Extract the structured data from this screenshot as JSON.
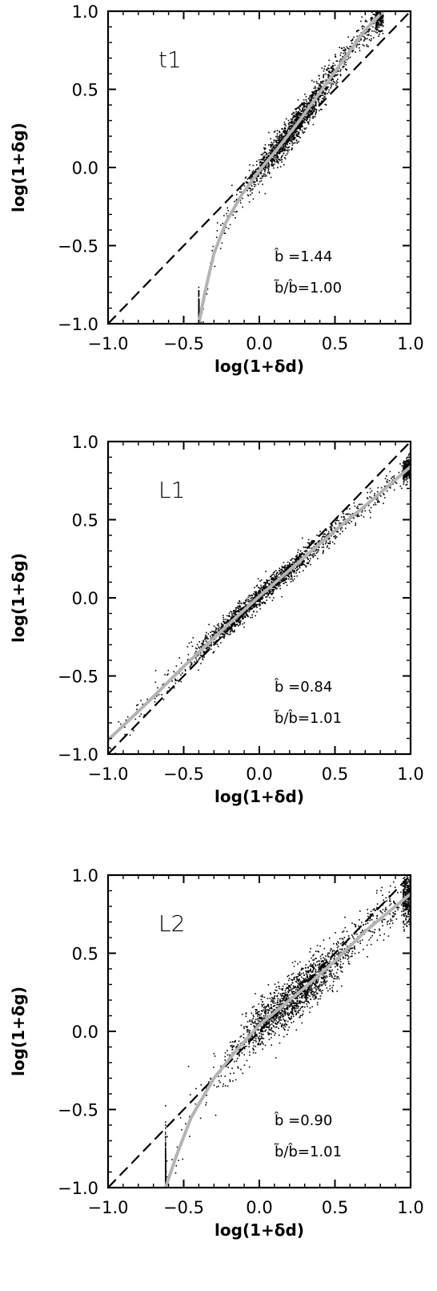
{
  "chart_data": [
    {
      "type": "scatter",
      "panel_label": "t1",
      "xlabel": "log(1+δd)",
      "ylabel": "log(1+δg)",
      "xlim": [
        -1.0,
        1.0
      ],
      "ylim": [
        -1.0,
        1.0
      ],
      "xticks": [
        "−1.0",
        "−0.5",
        "0.0",
        "0.5",
        "1.0"
      ],
      "yticks": [
        "−1.0",
        "−0.5",
        "0.0",
        "0.5",
        "1.0"
      ],
      "annotation_line1": "b̂   =1.44",
      "annotation_line2": "b̃/b̂=1.00",
      "b_hat": 1.44,
      "ratio": 1.0,
      "reference_line": {
        "style": "dashed",
        "points": [
          [
            -1.0,
            -1.0
          ],
          [
            1.0,
            1.0
          ]
        ]
      },
      "mean_relation": [
        [
          -0.4,
          -1.0
        ],
        [
          -0.36,
          -0.8
        ],
        [
          -0.3,
          -0.55
        ],
        [
          -0.22,
          -0.35
        ],
        [
          -0.12,
          -0.18
        ],
        [
          0.0,
          -0.02
        ],
        [
          0.12,
          0.12
        ],
        [
          0.25,
          0.28
        ],
        [
          0.4,
          0.48
        ],
        [
          0.55,
          0.68
        ],
        [
          0.7,
          0.88
        ],
        [
          0.82,
          1.0
        ]
      ],
      "scatter_spread": 0.05
    },
    {
      "type": "scatter",
      "panel_label": "L1",
      "xlabel": "log(1+δd)",
      "ylabel": "log(1+δg)",
      "xlim": [
        -1.0,
        1.0
      ],
      "ylim": [
        -1.0,
        1.0
      ],
      "xticks": [
        "−1.0",
        "−0.5",
        "0.0",
        "0.5",
        "1.0"
      ],
      "yticks": [
        "−1.0",
        "−0.5",
        "0.0",
        "0.5",
        "1.0"
      ],
      "annotation_line1": "b̂   =0.84",
      "annotation_line2": "b̃/b̂=1.01",
      "b_hat": 0.84,
      "ratio": 1.01,
      "reference_line": {
        "style": "dashed",
        "points": [
          [
            -1.0,
            -1.0
          ],
          [
            1.0,
            1.0
          ]
        ]
      },
      "mean_relation": [
        [
          -1.0,
          -0.91
        ],
        [
          -0.75,
          -0.68
        ],
        [
          -0.5,
          -0.44
        ],
        [
          -0.25,
          -0.21
        ],
        [
          0.0,
          0.01
        ],
        [
          0.25,
          0.22
        ],
        [
          0.5,
          0.43
        ],
        [
          0.75,
          0.63
        ],
        [
          1.0,
          0.84
        ]
      ],
      "scatter_spread": 0.035
    },
    {
      "type": "scatter",
      "panel_label": "L2",
      "xlabel": "log(1+δd)",
      "ylabel": "log(1+δg)",
      "xlim": [
        -1.0,
        1.0
      ],
      "ylim": [
        -1.0,
        1.0
      ],
      "xticks": [
        "−1.0",
        "−0.5",
        "0.0",
        "0.5",
        "1.0"
      ],
      "yticks": [
        "−1.0",
        "−0.5",
        "0.0",
        "0.5",
        "1.0"
      ],
      "annotation_line1": "b̂   =0.90",
      "annotation_line2": "b̃/b̂=1.01",
      "b_hat": 0.9,
      "ratio": 1.01,
      "reference_line": {
        "style": "dashed",
        "points": [
          [
            -1.0,
            -1.0
          ],
          [
            1.0,
            1.0
          ]
        ]
      },
      "mean_relation": [
        [
          -0.62,
          -1.0
        ],
        [
          -0.55,
          -0.8
        ],
        [
          -0.45,
          -0.55
        ],
        [
          -0.3,
          -0.3
        ],
        [
          -0.15,
          -0.12
        ],
        [
          0.0,
          0.04
        ],
        [
          0.15,
          0.16
        ],
        [
          0.3,
          0.28
        ],
        [
          0.5,
          0.45
        ],
        [
          0.7,
          0.64
        ],
        [
          1.0,
          0.88
        ]
      ],
      "scatter_spread": 0.08
    }
  ],
  "colors": {
    "points": "#000000",
    "mean_curve": "#b4b4b4",
    "reference_line": "#000000",
    "frame": "#000000"
  }
}
